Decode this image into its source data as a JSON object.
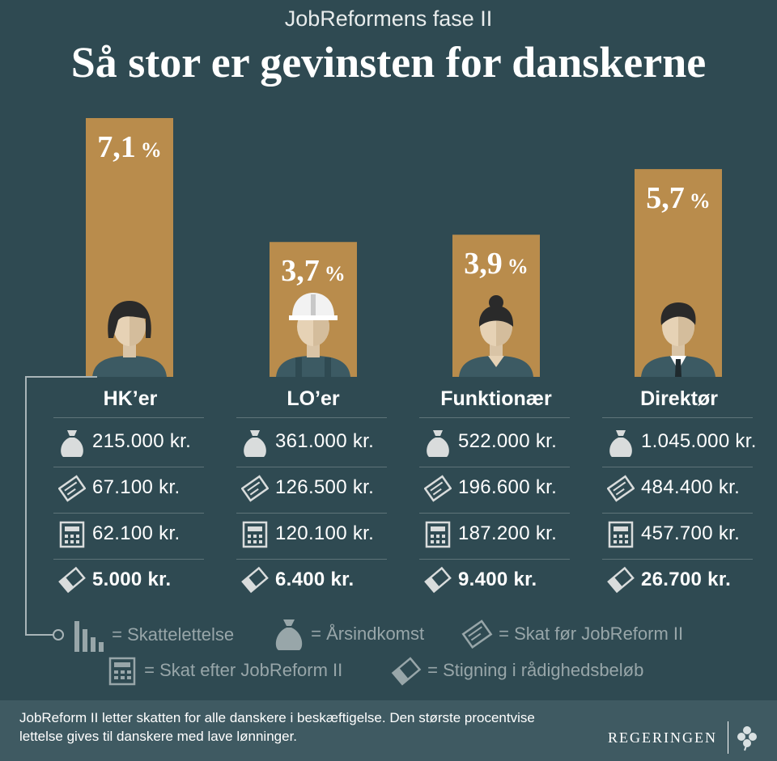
{
  "header": {
    "subtitle": "JobReformens fase II",
    "title": "Så stor er gevinsten for danskerne"
  },
  "chart_data": {
    "type": "bar",
    "title": "Så stor er gevinsten for danskerne",
    "subtitle": "JobReformens fase II",
    "categories": [
      "HK’er",
      "LO’er",
      "Funktionær",
      "Direktør"
    ],
    "series": [
      {
        "name": "",
        "values": [
          7.1,
          3.7,
          3.9,
          5.7
        ]
      }
    ],
    "value_labels": [
      "7,1",
      "3,7",
      "3,9",
      "5,7"
    ],
    "unit": "%",
    "ylim": [
      0,
      7.1
    ],
    "grid": false
  },
  "groups": [
    {
      "title": "HK’er",
      "income": "215.000 kr.",
      "tax_before": "67.100 kr.",
      "tax_after": "62.100 kr.",
      "increase": "5.000 kr."
    },
    {
      "title": "LO’er",
      "income": "361.000 kr.",
      "tax_before": "126.500 kr.",
      "tax_after": "120.100 kr.",
      "increase": "6.400 kr."
    },
    {
      "title": "Funktionær",
      "income": "522.000 kr.",
      "tax_before": "196.600 kr.",
      "tax_after": "187.200 kr.",
      "increase": "9.400 kr."
    },
    {
      "title": "Direktør",
      "income": "1.045.000 kr.",
      "tax_before": "484.400 kr.",
      "tax_after": "457.700 kr.",
      "increase": "26.700 kr."
    }
  ],
  "legend": {
    "tax_relief": "= Skattelettelse",
    "income": "= Årsindkomst",
    "tax_before": "= Skat før JobReform II",
    "tax_after": "= Skat efter JobReform II",
    "increase": "= Stigning i rådighedsbeløb"
  },
  "footer": {
    "text": "JobReform II letter skatten for alle danskere i beskæftigelse. Den største procentvise lettelse gives til danskere med lave lønninger.",
    "brand": "REGERINGEN"
  },
  "colors": {
    "background": "#2f4a52",
    "bar": "#b98c4c",
    "footer": "#3f5a62",
    "legend_text": "#98a6a9"
  }
}
